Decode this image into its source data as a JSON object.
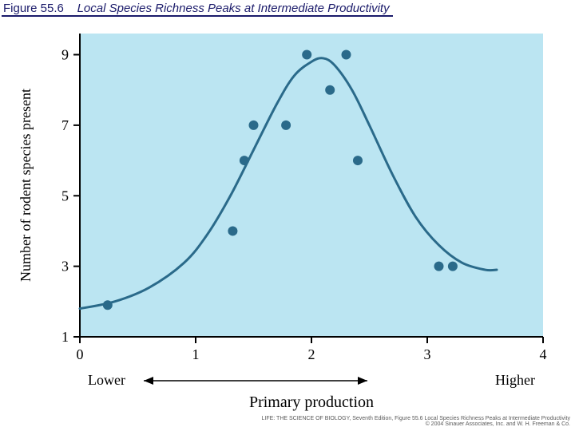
{
  "header": {
    "figure_number": "Figure 55.6",
    "figure_title": "Local Species Richness Peaks at Intermediate Productivity"
  },
  "chart": {
    "type": "scatter_with_curve",
    "background_color": "#bbe5f2",
    "axis_color": "#000000",
    "tick_color": "#000000",
    "curve_color": "#2a6a8a",
    "curve_width": 3,
    "point_color": "#2a6a8a",
    "point_radius": 6,
    "x": {
      "label": "Primary production",
      "label_fontsize": 20,
      "left_anchor": "Lower",
      "right_anchor": "Higher",
      "anchor_fontsize": 18,
      "ticks": [
        0,
        1,
        2,
        3,
        4
      ],
      "tick_fontsize": 18,
      "xlim": [
        0,
        4
      ]
    },
    "y": {
      "label": "Number of rodent species present",
      "label_fontsize": 18,
      "ticks": [
        1,
        3,
        5,
        7,
        9
      ],
      "tick_fontsize": 18,
      "ylim": [
        1,
        9.6
      ]
    },
    "points": [
      {
        "x": 0.24,
        "y": 1.9
      },
      {
        "x": 1.32,
        "y": 4.0
      },
      {
        "x": 1.42,
        "y": 6.0
      },
      {
        "x": 1.5,
        "y": 7.0
      },
      {
        "x": 1.78,
        "y": 7.0
      },
      {
        "x": 1.96,
        "y": 9.0
      },
      {
        "x": 2.16,
        "y": 8.0
      },
      {
        "x": 2.3,
        "y": 9.0
      },
      {
        "x": 2.4,
        "y": 6.0
      },
      {
        "x": 3.1,
        "y": 3.0
      },
      {
        "x": 3.22,
        "y": 3.0
      }
    ],
    "curve": [
      {
        "x": 0.0,
        "y": 1.8
      },
      {
        "x": 0.3,
        "y": 2.0
      },
      {
        "x": 0.6,
        "y": 2.4
      },
      {
        "x": 0.9,
        "y": 3.1
      },
      {
        "x": 1.1,
        "y": 3.9
      },
      {
        "x": 1.3,
        "y": 5.0
      },
      {
        "x": 1.5,
        "y": 6.3
      },
      {
        "x": 1.7,
        "y": 7.6
      },
      {
        "x": 1.85,
        "y": 8.4
      },
      {
        "x": 2.0,
        "y": 8.8
      },
      {
        "x": 2.1,
        "y": 8.9
      },
      {
        "x": 2.2,
        "y": 8.7
      },
      {
        "x": 2.35,
        "y": 8.0
      },
      {
        "x": 2.5,
        "y": 7.0
      },
      {
        "x": 2.7,
        "y": 5.6
      },
      {
        "x": 2.9,
        "y": 4.4
      },
      {
        "x": 3.1,
        "y": 3.6
      },
      {
        "x": 3.3,
        "y": 3.1
      },
      {
        "x": 3.5,
        "y": 2.9
      },
      {
        "x": 3.6,
        "y": 2.9
      }
    ]
  },
  "credit": {
    "line1": "LIFE: THE SCIENCE OF BIOLOGY, Seventh Edition, Figure 55.6 Local Species Richness Peaks at Intermediate Productivity",
    "line2": "© 2004 Sinauer Associates, Inc. and W. H. Freeman & Co."
  }
}
